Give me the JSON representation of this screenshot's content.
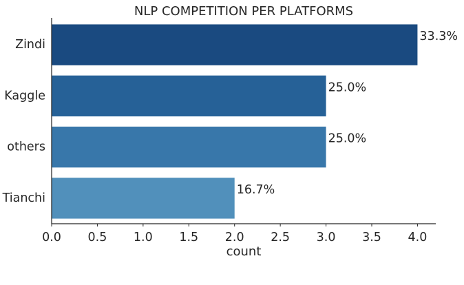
{
  "chart_data": {
    "type": "bar",
    "orientation": "horizontal",
    "title": "NLP COMPETITION PER PLATFORMS",
    "xlabel": "count",
    "ylabel": "",
    "categories": [
      "Zindi",
      "Kaggle",
      "others",
      "Tianchi"
    ],
    "values": [
      4,
      3,
      3,
      2
    ],
    "data_labels": [
      "33.3%",
      "25.0%",
      "25.0%",
      "16.7%"
    ],
    "xlim": [
      0,
      4.2
    ],
    "xticks": [
      "0.0",
      "0.5",
      "1.0",
      "1.5",
      "2.0",
      "2.5",
      "3.0",
      "3.5",
      "4.0"
    ],
    "colors": [
      "#1a4a80",
      "#266197",
      "#3877aa",
      "#5190bb"
    ],
    "grid": false,
    "legend": "none"
  }
}
